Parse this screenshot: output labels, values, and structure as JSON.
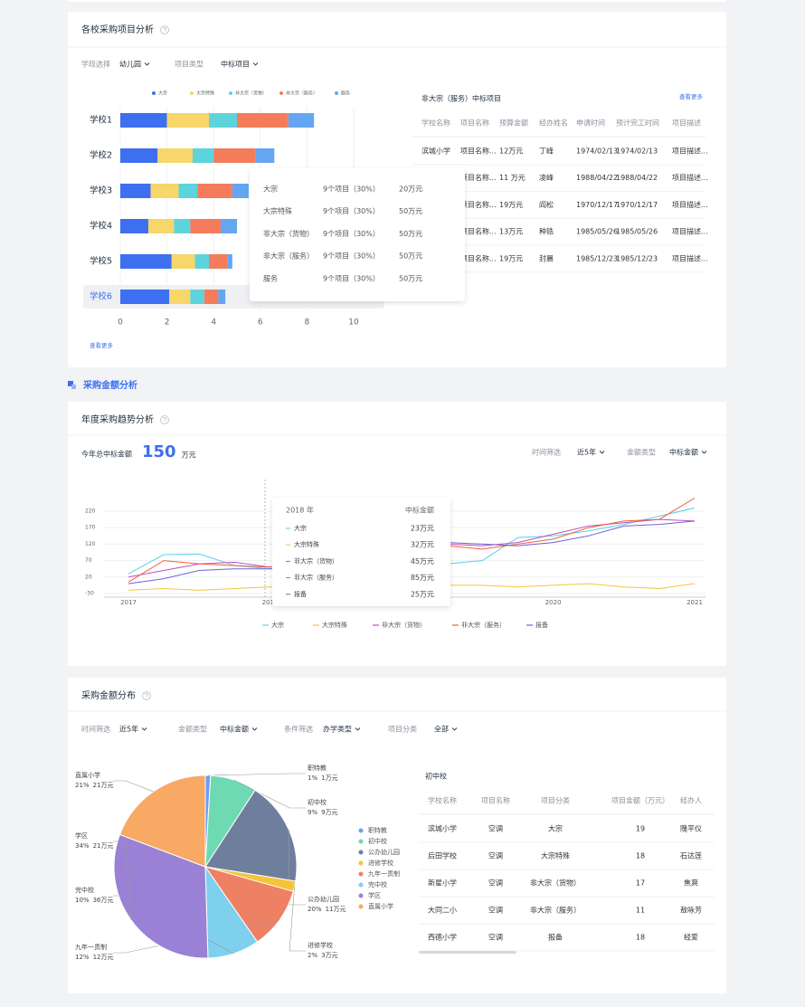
{
  "section_title": "采购金额分析",
  "chart_data": [
    {
      "type": "barh",
      "title": "各校采购项目分析",
      "filters": [
        {
          "label": "学段选择",
          "value": "幼儿园"
        },
        {
          "label": "项目类型",
          "value": "中标项目"
        }
      ],
      "categories": [
        "学校1",
        "学校2",
        "学校3",
        "学校4",
        "学校5",
        "学校6"
      ],
      "series": [
        {
          "name": "大宗",
          "color": "#3d6ff0",
          "values": [
            2.0,
            1.6,
            1.3,
            1.2,
            2.2,
            2.1
          ]
        },
        {
          "name": "大宗特殊",
          "color": "#f7d66a",
          "values": [
            1.8,
            1.5,
            1.2,
            1.1,
            1.0,
            0.9
          ]
        },
        {
          "name": "非大宗（货物）",
          "color": "#5dd4dc",
          "values": [
            1.2,
            0.9,
            0.8,
            0.7,
            0.6,
            0.6
          ]
        },
        {
          "name": "非大宗（服务）",
          "color": "#f47c5a",
          "values": [
            2.2,
            1.8,
            1.5,
            1.3,
            0.8,
            0.6
          ]
        },
        {
          "name": "服务",
          "color": "#64a6f2",
          "values": [
            1.1,
            0.8,
            0.7,
            0.7,
            0.2,
            0.3
          ]
        }
      ],
      "xlim": [
        0,
        10
      ],
      "xticks": [
        0,
        2,
        4,
        6,
        8,
        10
      ],
      "grid": true,
      "legend": "top",
      "highlight_index": 5,
      "more": "查看更多",
      "tooltip": [
        {
          "name": "大宗",
          "count": "9个项目（30%）",
          "amount": "20万元"
        },
        {
          "name": "大宗特殊",
          "count": "9个项目（30%）",
          "amount": "50万元"
        },
        {
          "name": "非大宗（货物）",
          "count": "9个项目（30%）",
          "amount": "50万元"
        },
        {
          "name": "非大宗（服务）",
          "count": "9个项目（30%）",
          "amount": "50万元"
        },
        {
          "name": "服务",
          "count": "9个项目（30%）",
          "amount": "50万元"
        }
      ]
    },
    {
      "type": "line",
      "title": "年度采购趋势分析",
      "total_label": "今年总中标金额",
      "total": 150,
      "total_unit": "万元",
      "filters": [
        {
          "label": "时间筛选",
          "value": "近5年"
        },
        {
          "label": "金额类型",
          "value": "中标金额"
        }
      ],
      "categories": [
        "2017",
        null,
        null,
        null,
        "2018",
        null,
        null,
        null,
        "2019",
        null,
        null,
        null,
        "2020",
        null,
        null,
        null,
        "2021"
      ],
      "series": [
        {
          "name": "大宗",
          "color": "#5ad0e6",
          "values": [
            30,
            88,
            90,
            55,
            45,
            60,
            80,
            95,
            100,
            60,
            70,
            140,
            145,
            160,
            180,
            205,
            230
          ]
        },
        {
          "name": "大宗特殊",
          "color": "#f5c342",
          "values": [
            -20,
            -15,
            -20,
            -15,
            -10,
            -5,
            -10,
            -5,
            0,
            -5,
            -5,
            -10,
            -5,
            0,
            -10,
            -15,
            0
          ]
        },
        {
          "name": "非大宗（货物）",
          "color": "#c14ec2",
          "values": [
            20,
            40,
            60,
            65,
            50,
            75,
            110,
            140,
            165,
            120,
            115,
            125,
            150,
            175,
            185,
            195,
            190
          ]
        },
        {
          "name": "非大宗（服务）",
          "color": "#f0603c",
          "values": [
            5,
            70,
            60,
            55,
            50,
            80,
            95,
            120,
            130,
            115,
            105,
            120,
            135,
            170,
            190,
            195,
            260
          ]
        },
        {
          "name": "报备",
          "color": "#6c62d6",
          "values": [
            0,
            15,
            40,
            45,
            45,
            50,
            90,
            130,
            160,
            125,
            120,
            115,
            125,
            145,
            175,
            180,
            190
          ]
        }
      ],
      "ylim": [
        -30,
        270
      ],
      "yticks": [
        -30,
        20,
        70,
        120,
        170,
        220
      ],
      "grid": true,
      "legend": "bottom",
      "tooltip": {
        "title": "2018 年",
        "header": "中标金额",
        "rows": [
          {
            "name": "大宗",
            "value": "23万元"
          },
          {
            "name": "大宗特殊",
            "value": "32万元"
          },
          {
            "name": "非大宗（货物）",
            "value": "45万元"
          },
          {
            "name": "非大宗（服务）",
            "value": "85万元"
          },
          {
            "name": "报备",
            "value": "25万元"
          }
        ]
      }
    },
    {
      "type": "pie",
      "title": "采购金额分布",
      "filters": [
        {
          "label": "时间筛选",
          "value": "近5年"
        },
        {
          "label": "金额类型",
          "value": "中标金额"
        },
        {
          "label": "条件筛选",
          "value": "办学类型"
        },
        {
          "label": "项目分类",
          "value": "全部"
        }
      ],
      "categories": [
        "职特教",
        "初中校",
        "公办幼儿园",
        "进修学校",
        "九年一贯制",
        "完中校",
        "学区",
        "直属小学"
      ],
      "values": [
        1,
        9,
        20,
        2,
        12,
        10,
        34,
        21
      ],
      "value_labels": [
        "1%",
        "9%",
        "20%",
        "2%",
        "12%",
        "10%",
        "34%",
        "21%"
      ],
      "amount_labels": [
        "1万元",
        "9万元",
        "11万元",
        "3万元",
        "12万元",
        "36万元",
        "21万元",
        "21万元"
      ],
      "colors": [
        "#6f9cf7",
        "#6fd9b3",
        "#6e7f9e",
        "#f6c33a",
        "#ee8064",
        "#7fd0ec",
        "#9a81d6",
        "#f8a964"
      ],
      "legend": "right"
    }
  ],
  "tables": [
    {
      "title": "非大宗（服务）中标项目",
      "more": "查看更多",
      "headers": [
        "学校名称",
        "项目名称",
        "预算金额",
        "经办姓名",
        "申请时间",
        "预计完工时间",
        "项目描述"
      ],
      "rows": [
        [
          "滨城小学",
          "项目名称...",
          "12万元",
          "丁峰",
          "1974/02/13",
          "1974/02/13",
          "项目描述..."
        ],
        [
          null,
          "项目名称...",
          "11 万元",
          "凌峰",
          "1988/04/22",
          "1988/04/22",
          "项目描述..."
        ],
        [
          null,
          "项目名称...",
          "19万元",
          "阎松",
          "1970/12/17",
          "1970/12/17",
          "项目描述..."
        ],
        [
          null,
          "项目名称...",
          "13万元",
          "种锆",
          "1985/05/26",
          "1985/05/26",
          "项目描述..."
        ],
        [
          null,
          "项目名称...",
          "19万元",
          "封晨",
          "1985/12/23",
          "1985/12/23",
          "项目描述..."
        ]
      ]
    },
    {
      "title": "初中校",
      "headers": [
        "学校名称",
        "项目名称",
        "项目分类",
        "项目金额（万元）",
        "经办人"
      ],
      "rows": [
        [
          "滨城小学",
          "空调",
          "大宗",
          "19",
          "隗平仪"
        ],
        [
          "后田学校",
          "空调",
          "大宗特殊",
          "18",
          "石达莲"
        ],
        [
          "新星小学",
          "空调",
          "非大宗（货物）",
          "17",
          "焦爽"
        ],
        [
          "大同二小",
          "空调",
          "非大宗（服务）",
          "11",
          "敖咏芳"
        ],
        [
          "西德小学",
          "空调",
          "报备",
          "18",
          "经爱"
        ]
      ]
    }
  ]
}
